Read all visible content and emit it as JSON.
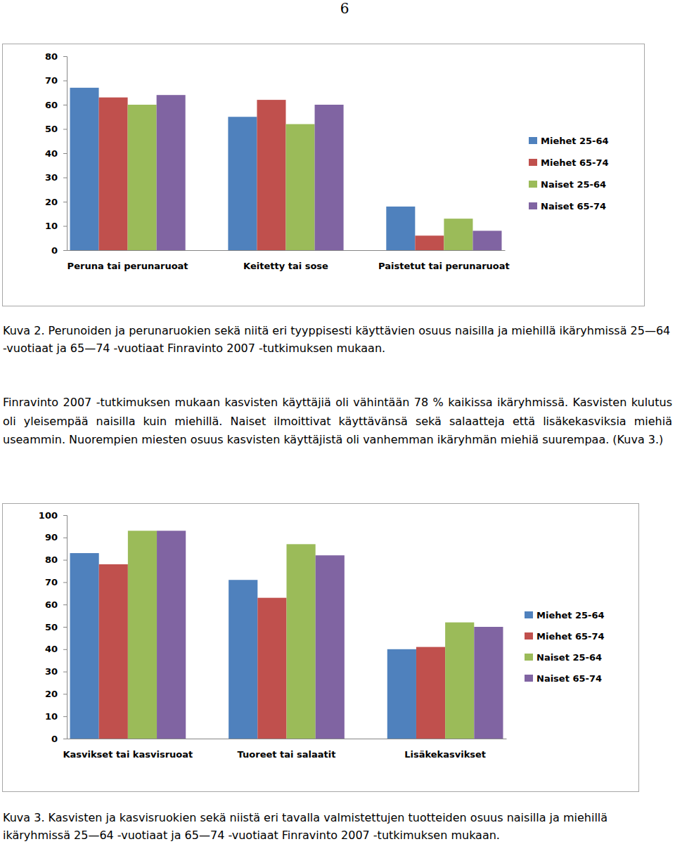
{
  "document": {
    "page_number": "6",
    "figure_2_caption": "Kuva 2. Perunoiden ja perunaruokien sekä niitä eri tyyppisesti käyttävien osuus naisilla ja miehillä ikäryhmissä 25—64 -vuotiaat ja 65—74 -vuotiaat Finravinto 2007 -tutkimuksen mukaan.",
    "paragraph": "Finravinto 2007 -tutkimuksen mukaan kasvisten käyttäjiä oli vähintään 78 % kaikissa ikäryhmissä. Kasvisten kulutus oli yleisempää naisilla kuin miehillä. Naiset ilmoittivat käyttävänsä sekä salaatteja että lisäkekasviksia miehiä useammin. Nuorempien miesten osuus kasvisten käyttäjistä oli vanhemman ikäryhmän miehiä suurempaa. (Kuva 3.)",
    "figure_3_caption": "Kuva 3. Kasvisten ja kasvisruokien sekä niistä eri tavalla valmistettujen tuotteiden osuus naisilla ja miehillä ikäryhmissä 25—64 -vuotiaat ja 65—74 -vuotiaat Finravinto 2007 -tutkimuksen mukaan."
  },
  "chart_data": [
    {
      "type": "bar",
      "categories": [
        "Peruna tai perunaruoat",
        "Keitetty tai sose",
        "Paistetut tai perunaruoat"
      ],
      "series": [
        {
          "name": "Miehet 25-64",
          "color": "#4f81bd",
          "values": [
            67,
            55,
            18
          ]
        },
        {
          "name": "Miehet 65-74",
          "color": "#c0504d",
          "values": [
            63,
            62,
            6
          ]
        },
        {
          "name": "Naiset 25-64",
          "color": "#9bbb59",
          "values": [
            60,
            52,
            13
          ]
        },
        {
          "name": "Naiset 65-74",
          "color": "#8064a2",
          "values": [
            64,
            60,
            8
          ]
        }
      ],
      "ylim": [
        0,
        80
      ],
      "yticks": [
        0,
        10,
        20,
        30,
        40,
        50,
        60,
        70,
        80
      ],
      "grid": false,
      "legend": "right"
    },
    {
      "type": "bar",
      "categories": [
        "Kasvikset tai kasvisruoat",
        "Tuoreet tai salaatit",
        "Lisäkekasvikset"
      ],
      "series": [
        {
          "name": "Miehet 25-64",
          "color": "#4f81bd",
          "values": [
            83,
            71,
            40
          ]
        },
        {
          "name": "Miehet 65-74",
          "color": "#c0504d",
          "values": [
            78,
            63,
            41
          ]
        },
        {
          "name": "Naiset 25-64",
          "color": "#9bbb59",
          "values": [
            93,
            87,
            52
          ]
        },
        {
          "name": "Naiset 65-74",
          "color": "#8064a2",
          "values": [
            93,
            82,
            50
          ]
        }
      ],
      "ylim": [
        0,
        100
      ],
      "yticks": [
        0,
        10,
        20,
        30,
        40,
        50,
        60,
        70,
        80,
        90,
        100
      ],
      "grid": false,
      "legend": "right"
    }
  ]
}
